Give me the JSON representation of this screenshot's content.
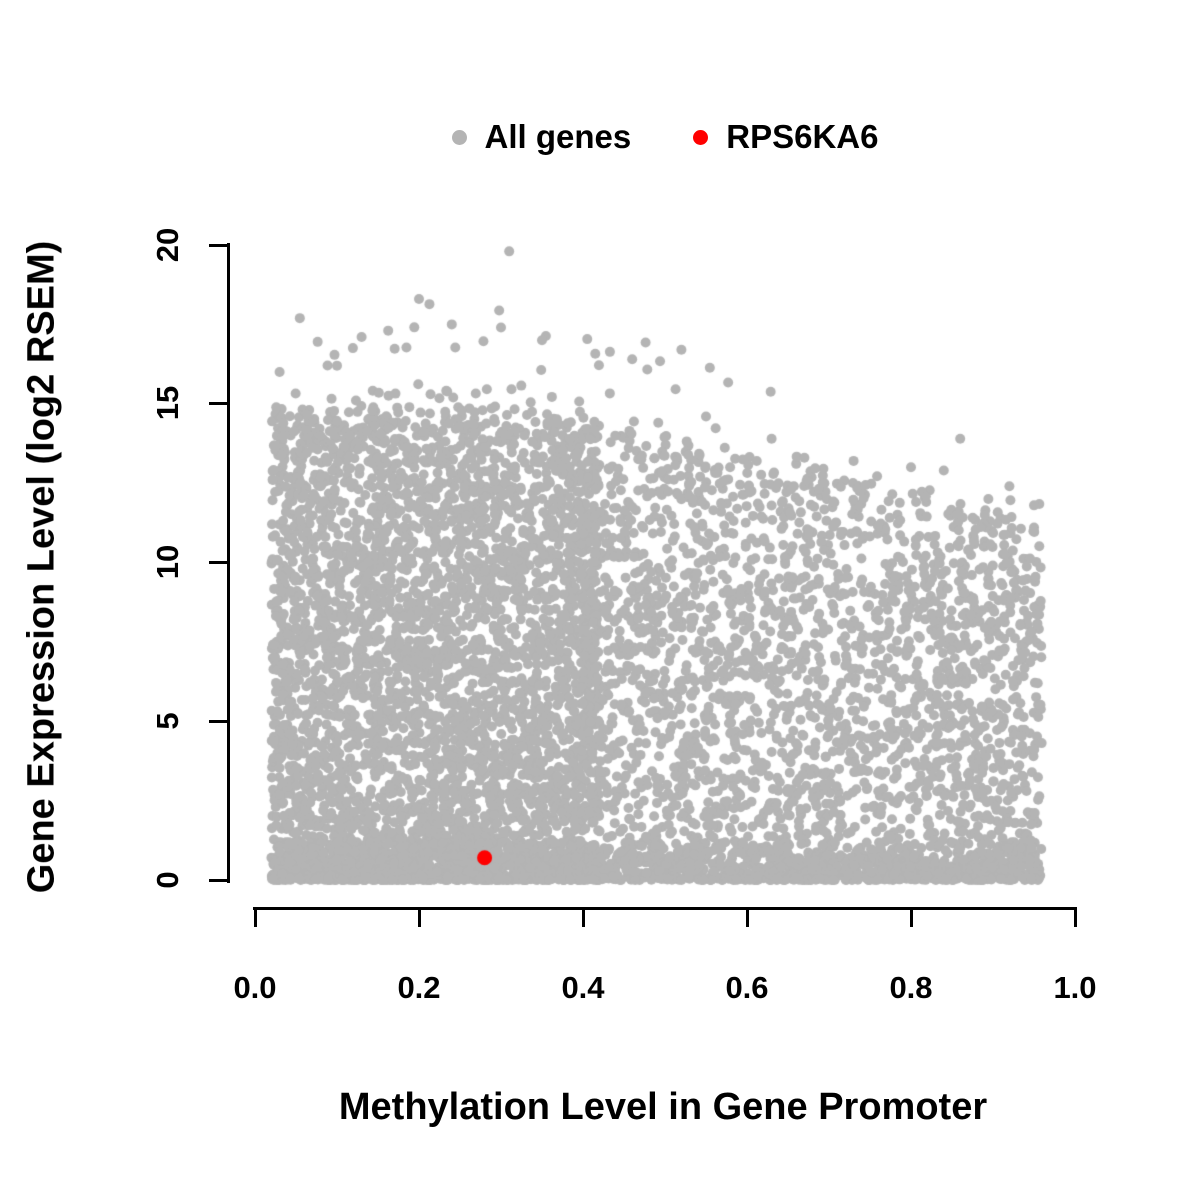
{
  "chart_data": {
    "type": "scatter",
    "title": "",
    "xlabel": "Methylation Level in Gene Promoter",
    "ylabel": "Gene Expression Level (log2 RSEM)",
    "xlim": [
      0.0,
      1.0
    ],
    "ylim": [
      0,
      20
    ],
    "grid": false,
    "x_tick_labels": [
      "0.0",
      "0.2",
      "0.4",
      "0.6",
      "0.8",
      "1.0"
    ],
    "y_tick_labels": [
      "0",
      "5",
      "10",
      "15",
      "20"
    ],
    "legend_position": "top-center",
    "legend": [
      {
        "label": "All genes",
        "color": "#b4b4b4"
      },
      {
        "label": "RPS6KA6",
        "color": "#ff0000"
      }
    ],
    "highlight": {
      "gene": "RPS6KA6",
      "x": 0.28,
      "y": 0.7,
      "color": "#ff0000",
      "radius": 7.5
    },
    "cloud": {
      "description": "Dense gray cloud of all genes; expression upper envelope ~15 log2 RSEM at low promoter methylation, declining to ~11-12 at high methylation; points span methylation 0.02-0.96 and fill down to 0.",
      "seed": 42,
      "color": "#b4b4b4",
      "radius": 5,
      "n_main": 6500,
      "n_bottom": 1600,
      "n_top_outliers": 40,
      "x_min": 0.02,
      "x_max": 0.96,
      "low_x_fraction": 0.6,
      "envelope": {
        "flat_until": 0.32,
        "flat_value": 14.8,
        "slope": -5.5
      },
      "extreme_points": [
        [
          0.31,
          19.8
        ],
        [
          0.2,
          18.3
        ],
        [
          0.24,
          17.5
        ],
        [
          0.3,
          17.4
        ],
        [
          0.13,
          17.1
        ],
        [
          0.35,
          17.0
        ],
        [
          0.52,
          16.7
        ],
        [
          0.46,
          16.4
        ],
        [
          0.1,
          16.2
        ],
        [
          0.03,
          16.0
        ],
        [
          0.55,
          14.6
        ],
        [
          0.63,
          13.9
        ],
        [
          0.86,
          13.9
        ],
        [
          0.67,
          13.3
        ],
        [
          0.73,
          13.2
        ],
        [
          0.8,
          13.0
        ],
        [
          0.84,
          12.9
        ],
        [
          0.92,
          12.4
        ],
        [
          0.95,
          11.8
        ],
        [
          0.89,
          11.5
        ]
      ]
    }
  }
}
